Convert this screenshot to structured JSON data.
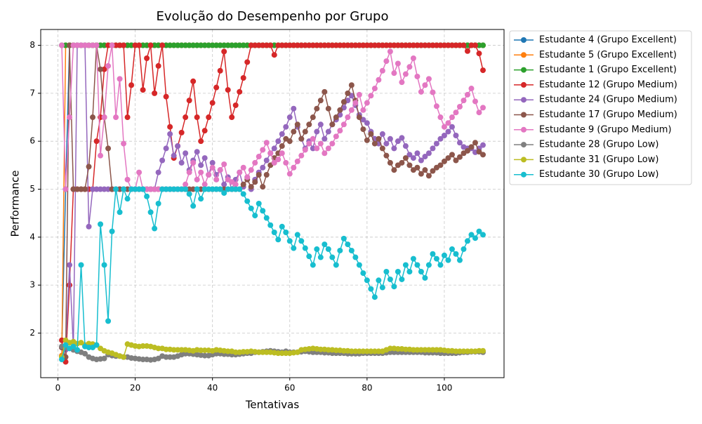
{
  "chart_data": {
    "type": "line",
    "title": "Evolução do Desempenho por Grupo",
    "x_label": "Tentativas",
    "y_label": "Performance",
    "xlim": [
      -4.45,
      115.45
    ],
    "ylim": [
      1.07,
      8.33
    ],
    "xticks": [
      0,
      20,
      40,
      60,
      80,
      100
    ],
    "yticks": [
      2,
      3,
      4,
      5,
      6,
      7,
      8
    ],
    "grid": true,
    "legend": "outside right",
    "x": [
      1,
      2,
      3,
      4,
      5,
      6,
      7,
      8,
      9,
      10,
      11,
      12,
      13,
      14,
      15,
      16,
      17,
      18,
      19,
      20,
      21,
      22,
      23,
      24,
      25,
      26,
      27,
      28,
      29,
      30,
      31,
      32,
      33,
      34,
      35,
      36,
      37,
      38,
      39,
      40,
      41,
      42,
      43,
      44,
      45,
      46,
      47,
      48,
      49,
      50,
      51,
      52,
      53,
      54,
      55,
      56,
      57,
      58,
      59,
      60,
      61,
      62,
      63,
      64,
      65,
      66,
      67,
      68,
      69,
      70,
      71,
      72,
      73,
      74,
      75,
      76,
      77,
      78,
      79,
      80,
      81,
      82,
      83,
      84,
      85,
      86,
      87,
      88,
      89,
      90,
      91,
      92,
      93,
      94,
      95,
      96,
      97,
      98,
      99,
      100,
      101,
      102,
      103,
      104,
      105,
      106,
      107,
      108,
      109,
      110
    ],
    "series": [
      {
        "name": "Estudante 4 (Grupo Excellent)",
        "color": "#1f77b4",
        "values": [
          1.7,
          5,
          8,
          8,
          8,
          8,
          8,
          8,
          8,
          8,
          8,
          8,
          8,
          8,
          8,
          8,
          8,
          8,
          8,
          8,
          8,
          8,
          8,
          8,
          8,
          8,
          8,
          8,
          8,
          8,
          8,
          8,
          8,
          8,
          8,
          8,
          8,
          8,
          8,
          8,
          8,
          8,
          8,
          8,
          8,
          8,
          8,
          8,
          8,
          8,
          8,
          8,
          8,
          8,
          8,
          8,
          8,
          8,
          8,
          8,
          8,
          8,
          8,
          8,
          8,
          8,
          8,
          8,
          8,
          8,
          8,
          8,
          8,
          8,
          8,
          8,
          8,
          8,
          8,
          8,
          8,
          8,
          8,
          8,
          8,
          8,
          8,
          8,
          8,
          8,
          8,
          8,
          8,
          8,
          8,
          8,
          8,
          8,
          8,
          8,
          8,
          8,
          8,
          8,
          8,
          8,
          8,
          8,
          8,
          8
        ]
      },
      {
        "name": "Estudante 5 (Grupo Excellent)",
        "color": "#ff7f0e",
        "values": [
          1.53,
          8,
          8,
          8,
          8,
          8,
          8,
          8,
          8,
          8,
          8,
          8,
          8,
          8,
          8,
          8,
          8,
          8,
          8,
          8,
          8,
          8,
          8,
          8,
          8,
          8,
          8,
          8,
          8,
          8,
          8,
          8,
          8,
          8,
          8,
          8,
          8,
          8,
          8,
          8,
          8,
          8,
          8,
          8,
          8,
          8,
          8,
          8,
          8,
          8,
          8,
          8,
          8,
          8,
          8,
          8,
          8,
          8,
          8,
          8,
          8,
          8,
          8,
          8,
          8,
          8,
          8,
          8,
          8,
          8,
          8,
          8,
          8,
          8,
          8,
          8,
          8,
          8,
          8,
          8,
          8,
          8,
          8,
          8,
          8,
          8,
          8,
          8,
          8,
          8,
          8,
          8,
          8,
          8,
          8,
          8,
          8,
          8,
          8,
          8,
          8,
          8,
          8,
          8,
          8,
          8,
          8,
          8,
          8,
          8
        ]
      },
      {
        "name": "Estudante 1 (Grupo Excellent)",
        "color": "#2ca02c",
        "values": [
          8,
          8,
          8,
          8,
          8,
          8,
          8,
          8,
          8,
          8,
          8,
          8,
          8,
          8,
          8,
          8,
          8,
          8,
          8,
          8,
          8,
          8,
          8,
          8,
          8,
          8,
          8,
          8,
          8,
          8,
          8,
          8,
          8,
          8,
          8,
          8,
          8,
          8,
          8,
          8,
          8,
          8,
          8,
          8,
          8,
          8,
          8,
          8,
          8,
          8,
          8,
          8,
          8,
          8,
          8,
          8,
          8,
          8,
          8,
          8,
          8,
          8,
          8,
          8,
          8,
          8,
          8,
          8,
          8,
          8,
          8,
          8,
          8,
          8,
          8,
          8,
          8,
          8,
          8,
          8,
          8,
          8,
          8,
          8,
          8,
          8,
          8,
          8,
          8,
          8,
          8,
          8,
          8,
          8,
          8,
          8,
          8,
          8,
          8,
          8,
          8,
          8,
          8,
          8,
          8,
          8,
          8,
          8,
          8,
          8
        ]
      },
      {
        "name": "Estudante 12 (Grupo Medium)",
        "color": "#d62728",
        "values": [
          1.85,
          1.4,
          3.0,
          5,
          5,
          5,
          5,
          5,
          5,
          6.0,
          6.5,
          7.5,
          8,
          8,
          8,
          8,
          8,
          6.5,
          7.17,
          8,
          8,
          7.07,
          7.73,
          8,
          7.0,
          7.57,
          8,
          6.93,
          6.3,
          5.65,
          5.9,
          6.18,
          6.5,
          6.85,
          7.25,
          6.5,
          6.0,
          6.22,
          6.5,
          6.8,
          7.12,
          7.47,
          7.87,
          7.07,
          6.5,
          6.75,
          7.03,
          7.32,
          7.65,
          8,
          8,
          8,
          8,
          8,
          8,
          7.8,
          8,
          8,
          8,
          8,
          8,
          8,
          8,
          8,
          8,
          8,
          8,
          8,
          8,
          8,
          8,
          8,
          8,
          8,
          8,
          8,
          8,
          8,
          8,
          8,
          8,
          8,
          8,
          8,
          8,
          8,
          8,
          8,
          8,
          8,
          8,
          8,
          8,
          8,
          8,
          8,
          8,
          8,
          8,
          8,
          8,
          8,
          8,
          8,
          8,
          7.88,
          8,
          8,
          7.83,
          7.48
        ]
      },
      {
        "name": "Estudante 24 (Grupo Medium)",
        "color": "#9467bd",
        "values": [
          1.7,
          1.65,
          3.42,
          1.7,
          8,
          8,
          8,
          4.22,
          5,
          5,
          5,
          5,
          5,
          5,
          5,
          5,
          5,
          5,
          5,
          5,
          5,
          5,
          5,
          5,
          5,
          5.35,
          5.6,
          5.85,
          6.15,
          5.7,
          5.9,
          5.55,
          5.75,
          5.4,
          5.6,
          5.78,
          5.5,
          5.65,
          5.3,
          5.55,
          5.3,
          5.4,
          5.1,
          5.25,
          5.0,
          5.2,
          5.35,
          5.05,
          5.25,
          5.0,
          5.2,
          5.35,
          5.45,
          5.6,
          5.75,
          5.85,
          6.0,
          6.15,
          6.3,
          6.5,
          6.68,
          6.3,
          6.05,
          5.85,
          6.0,
          5.85,
          6.2,
          6.35,
          6.05,
          6.2,
          6.35,
          6.45,
          6.55,
          6.7,
          6.85,
          6.95,
          6.75,
          6.55,
          6.45,
          6.38,
          6.2,
          6.05,
          5.95,
          6.15,
          5.95,
          6.05,
          5.85,
          6.0,
          6.07,
          5.9,
          5.72,
          5.65,
          5.75,
          5.6,
          5.68,
          5.75,
          5.85,
          5.95,
          6.05,
          6.12,
          6.2,
          6.3,
          6.12,
          5.97,
          5.88,
          5.85,
          5.85,
          5.77,
          5.85,
          5.92
        ]
      },
      {
        "name": "Estudante 17 (Grupo Medium)",
        "color": "#8c564b",
        "values": [
          1.7,
          1.5,
          8,
          5,
          5,
          5,
          5,
          5.47,
          6.5,
          8,
          7.5,
          6.5,
          5.85,
          5,
          5,
          5,
          5,
          5,
          5,
          5,
          5,
          5,
          5,
          5,
          5,
          5,
          5,
          5,
          5,
          5,
          5,
          5,
          5,
          5,
          5,
          5,
          5,
          5,
          5,
          5,
          5,
          5,
          5,
          5,
          5,
          5,
          5,
          5.1,
          5.2,
          5.05,
          5.15,
          5.3,
          5.05,
          5.3,
          5.5,
          5.65,
          5.75,
          5.9,
          6.05,
          6.0,
          6.2,
          6.35,
          6.05,
          6.2,
          6.35,
          6.5,
          6.68,
          6.85,
          7.03,
          6.68,
          6.35,
          6.5,
          6.65,
          6.82,
          7.0,
          7.17,
          6.85,
          6.5,
          6.25,
          6.02,
          6.15,
          5.95,
          6.05,
          5.85,
          5.7,
          5.55,
          5.4,
          5.5,
          5.55,
          5.65,
          5.5,
          5.4,
          5.45,
          5.32,
          5.4,
          5.28,
          5.38,
          5.45,
          5.5,
          5.58,
          5.65,
          5.72,
          5.6,
          5.67,
          5.75,
          5.8,
          5.88,
          5.97,
          5.78,
          5.72
        ]
      },
      {
        "name": "Estudante 9 (Grupo Medium)",
        "color": "#e377c2",
        "values": [
          8,
          5,
          6.5,
          8,
          8,
          8,
          8,
          8,
          8,
          8,
          5.7,
          6.5,
          7.57,
          8,
          6.5,
          7.3,
          5.95,
          5.2,
          5,
          5,
          5.35,
          5,
          5,
          5,
          5,
          5,
          5,
          5,
          5,
          5,
          5,
          5,
          5.1,
          5.35,
          5.55,
          5.2,
          5.35,
          5.1,
          5.3,
          5.45,
          5.2,
          5.4,
          5.52,
          5.2,
          5.15,
          5.1,
          5.35,
          5.45,
          5.25,
          5.4,
          5.55,
          5.68,
          5.82,
          5.97,
          5.75,
          5.55,
          5.62,
          5.75,
          5.55,
          5.32,
          5.45,
          5.58,
          5.7,
          5.82,
          5.95,
          6.05,
          5.85,
          5.95,
          5.75,
          5.85,
          5.95,
          6.1,
          6.22,
          6.35,
          6.5,
          6.65,
          6.8,
          6.97,
          6.65,
          6.8,
          6.95,
          7.1,
          7.28,
          7.47,
          7.67,
          7.87,
          7.42,
          7.62,
          7.23,
          7.4,
          7.55,
          7.73,
          7.35,
          7.03,
          7.17,
          7.3,
          7.02,
          6.73,
          6.5,
          6.3,
          6.38,
          6.5,
          6.6,
          6.72,
          6.85,
          6.97,
          7.1,
          6.83,
          6.6,
          6.7
        ]
      },
      {
        "name": "Estudante 28 (Grupo Low)",
        "color": "#7f7f7f",
        "values": [
          1.72,
          1.7,
          1.68,
          1.65,
          1.62,
          1.6,
          1.57,
          1.5,
          1.47,
          1.45,
          1.46,
          1.47,
          1.55,
          1.53,
          1.52,
          1.52,
          1.5,
          1.5,
          1.48,
          1.47,
          1.46,
          1.45,
          1.45,
          1.44,
          1.45,
          1.47,
          1.52,
          1.5,
          1.5,
          1.5,
          1.52,
          1.55,
          1.57,
          1.57,
          1.56,
          1.55,
          1.54,
          1.53,
          1.53,
          1.55,
          1.57,
          1.57,
          1.56,
          1.56,
          1.55,
          1.55,
          1.56,
          1.57,
          1.58,
          1.58,
          1.6,
          1.6,
          1.61,
          1.62,
          1.63,
          1.62,
          1.61,
          1.6,
          1.62,
          1.6,
          1.6,
          1.6,
          1.61,
          1.62,
          1.61,
          1.6,
          1.6,
          1.6,
          1.59,
          1.59,
          1.58,
          1.58,
          1.58,
          1.58,
          1.57,
          1.57,
          1.57,
          1.57,
          1.58,
          1.58,
          1.58,
          1.58,
          1.58,
          1.58,
          1.59,
          1.6,
          1.6,
          1.6,
          1.6,
          1.6,
          1.6,
          1.6,
          1.6,
          1.6,
          1.59,
          1.59,
          1.59,
          1.59,
          1.58,
          1.58,
          1.58,
          1.58,
          1.58,
          1.59,
          1.6,
          1.6,
          1.61,
          1.61,
          1.61,
          1.6
        ]
      },
      {
        "name": "Estudante 31 (Grupo Low)",
        "color": "#bcbd22",
        "values": [
          1.5,
          1.85,
          1.8,
          1.82,
          1.78,
          1.8,
          1.75,
          1.78,
          1.77,
          1.75,
          1.68,
          1.63,
          1.6,
          1.58,
          1.55,
          1.52,
          1.5,
          1.77,
          1.75,
          1.73,
          1.72,
          1.73,
          1.73,
          1.72,
          1.7,
          1.68,
          1.68,
          1.66,
          1.66,
          1.65,
          1.65,
          1.65,
          1.65,
          1.64,
          1.63,
          1.65,
          1.64,
          1.64,
          1.64,
          1.63,
          1.65,
          1.64,
          1.63,
          1.62,
          1.62,
          1.6,
          1.6,
          1.61,
          1.61,
          1.62,
          1.61,
          1.6,
          1.6,
          1.6,
          1.6,
          1.59,
          1.58,
          1.58,
          1.58,
          1.58,
          1.59,
          1.6,
          1.65,
          1.66,
          1.67,
          1.68,
          1.67,
          1.66,
          1.66,
          1.65,
          1.65,
          1.64,
          1.64,
          1.63,
          1.63,
          1.62,
          1.62,
          1.62,
          1.62,
          1.62,
          1.62,
          1.62,
          1.62,
          1.62,
          1.65,
          1.68,
          1.68,
          1.67,
          1.67,
          1.66,
          1.66,
          1.65,
          1.65,
          1.65,
          1.65,
          1.65,
          1.65,
          1.65,
          1.65,
          1.64,
          1.63,
          1.63,
          1.62,
          1.62,
          1.62,
          1.62,
          1.62,
          1.62,
          1.63,
          1.63
        ]
      },
      {
        "name": "Estudante 30 (Grupo Low)",
        "color": "#17becf",
        "values": [
          1.45,
          1.75,
          1.68,
          1.72,
          1.65,
          3.42,
          1.72,
          1.7,
          1.7,
          1.75,
          4.27,
          3.42,
          2.25,
          4.12,
          5,
          4.52,
          5,
          4.8,
          5,
          5,
          5,
          5,
          4.85,
          4.52,
          4.18,
          4.7,
          5,
          5,
          5,
          5,
          5,
          5,
          5,
          4.9,
          4.65,
          5,
          4.8,
          5,
          5,
          5,
          5,
          5,
          4.92,
          5,
          5,
          5,
          5,
          4.9,
          4.75,
          4.6,
          4.45,
          4.7,
          4.55,
          4.4,
          4.25,
          4.1,
          3.95,
          4.22,
          4.1,
          3.92,
          3.77,
          4.05,
          3.92,
          3.77,
          3.6,
          3.42,
          3.75,
          3.58,
          3.85,
          3.75,
          3.58,
          3.42,
          3.72,
          3.97,
          3.85,
          3.72,
          3.58,
          3.42,
          3.25,
          3.1,
          2.92,
          2.75,
          3.1,
          2.95,
          3.28,
          3.12,
          2.97,
          3.28,
          3.12,
          3.42,
          3.28,
          3.55,
          3.42,
          3.28,
          3.15,
          3.42,
          3.65,
          3.55,
          3.42,
          3.62,
          3.52,
          3.75,
          3.65,
          3.52,
          3.75,
          3.92,
          4.05,
          3.98,
          4.12,
          4.05
        ]
      }
    ]
  }
}
